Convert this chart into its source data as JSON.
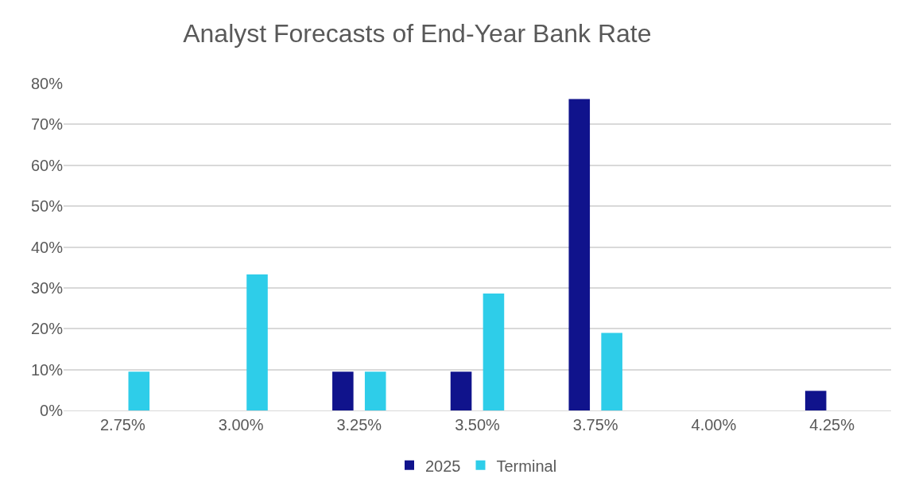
{
  "chart_data": {
    "type": "bar",
    "title": "Analyst Forecasts of End-Year Bank Rate",
    "categories": [
      "2.75%",
      "3.00%",
      "3.25%",
      "3.50%",
      "3.75%",
      "4.00%",
      "4.25%"
    ],
    "series": [
      {
        "name": "2025",
        "color": "#10138c",
        "values": [
          0,
          0,
          9.5,
          9.5,
          76.2,
          0,
          4.8
        ]
      },
      {
        "name": "Terminal",
        "color": "#2ecde9",
        "values": [
          9.5,
          33.3,
          9.5,
          28.6,
          19.0,
          0,
          0
        ]
      }
    ],
    "ylim": [
      0,
      80
    ],
    "yticks": [
      {
        "value": 0,
        "label": "0%"
      },
      {
        "value": 10,
        "label": "10%"
      },
      {
        "value": 20,
        "label": "20%"
      },
      {
        "value": 30,
        "label": "30%"
      },
      {
        "value": 40,
        "label": "40%"
      },
      {
        "value": 50,
        "label": "50%"
      },
      {
        "value": 60,
        "label": "60%"
      },
      {
        "value": 70,
        "label": "70%"
      },
      {
        "value": 80,
        "label": "80%"
      }
    ],
    "grid": "y",
    "legend": "bottom"
  }
}
